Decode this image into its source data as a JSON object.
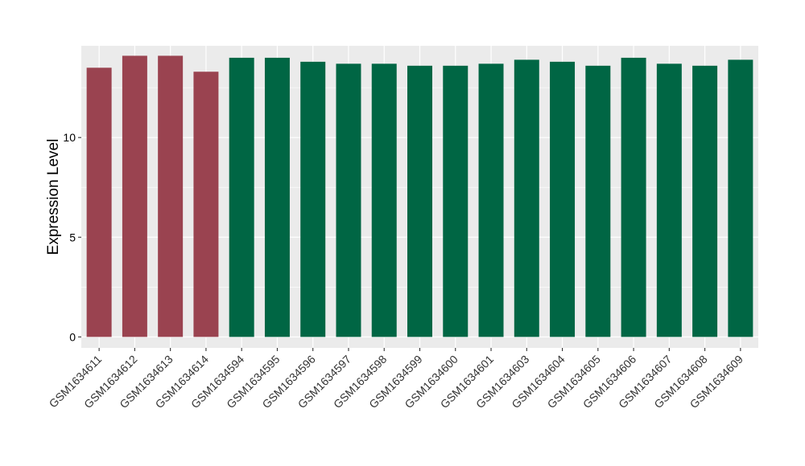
{
  "chart_data": {
    "type": "bar",
    "title": "",
    "xlabel": "",
    "ylabel": "Expression Level",
    "ylim": [
      -0.55,
      14.6
    ],
    "yticks": [
      0,
      5,
      10
    ],
    "grid": true,
    "legend": "none",
    "categories": [
      "GSM1634611",
      "GSM1634612",
      "GSM1634613",
      "GSM1634614",
      "GSM1634594",
      "GSM1634595",
      "GSM1634596",
      "GSM1634597",
      "GSM1634598",
      "GSM1634599",
      "GSM1634600",
      "GSM1634601",
      "GSM1634603",
      "GSM1634604",
      "GSM1634605",
      "GSM1634606",
      "GSM1634607",
      "GSM1634608",
      "GSM1634609"
    ],
    "values": [
      13.5,
      14.1,
      14.1,
      13.3,
      14.0,
      14.0,
      13.8,
      13.7,
      13.7,
      13.6,
      13.6,
      13.7,
      13.9,
      13.8,
      13.6,
      14.0,
      13.7,
      13.6,
      13.9
    ],
    "bar_colors": [
      "#9a4350",
      "#9a4350",
      "#9a4350",
      "#9a4350",
      "#006644",
      "#006644",
      "#006644",
      "#006644",
      "#006644",
      "#006644",
      "#006644",
      "#006644",
      "#006644",
      "#006644",
      "#006644",
      "#006644",
      "#006644",
      "#006644",
      "#006644"
    ],
    "panel_background": "#ebebeb",
    "grid_color": "#ffffff"
  }
}
